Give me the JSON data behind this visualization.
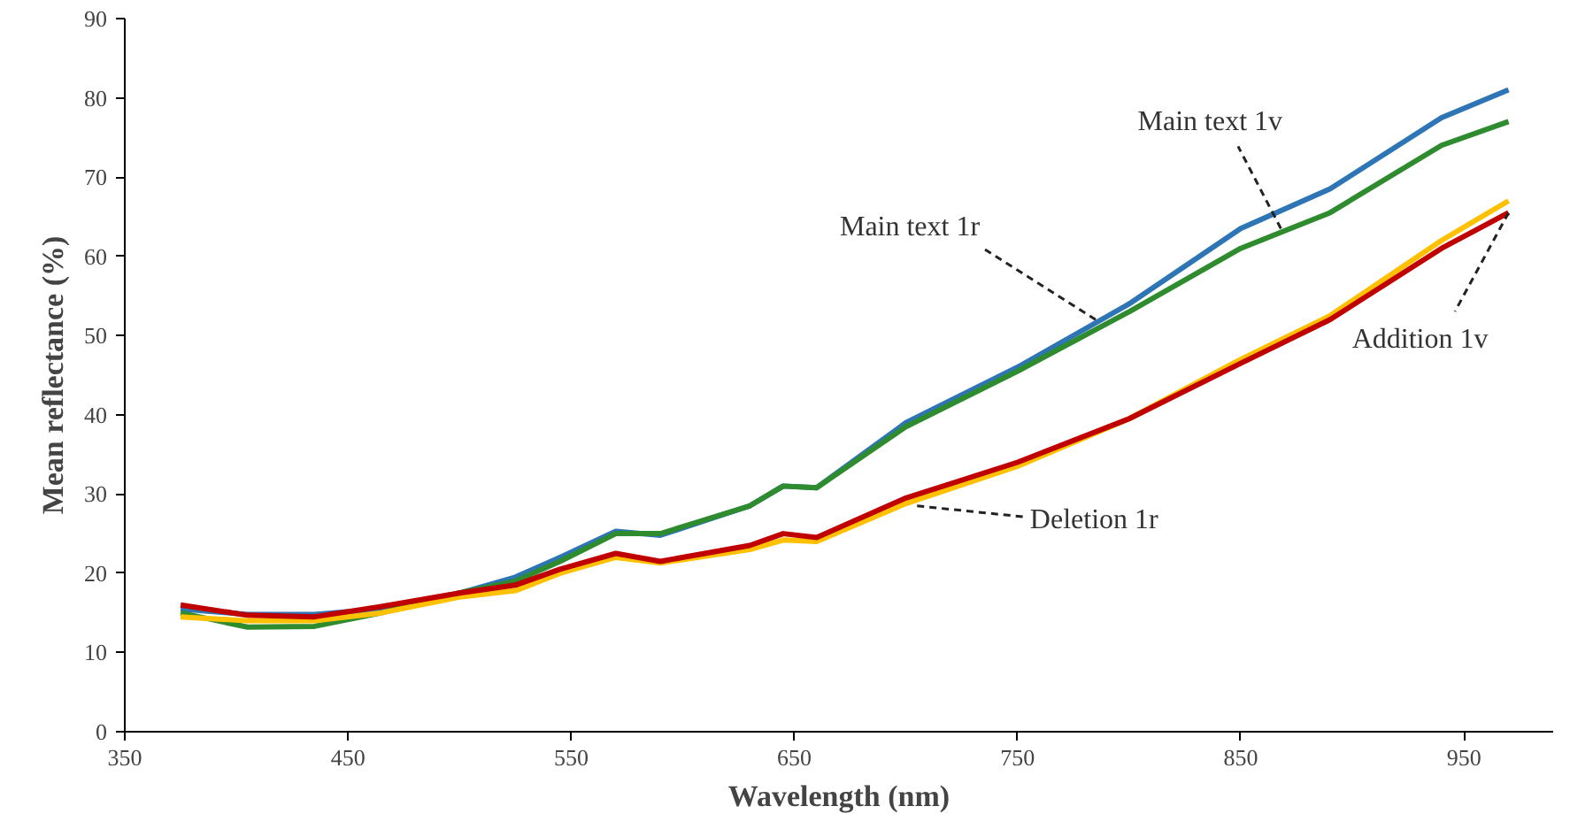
{
  "chart_data": {
    "type": "line",
    "xlabel": "Wavelength (nm)",
    "ylabel": "Mean reflectance (%)",
    "x": [
      375,
      405,
      435,
      465,
      500,
      525,
      545,
      570,
      590,
      630,
      645,
      660,
      700,
      750,
      800,
      850,
      890,
      940,
      970
    ],
    "xlim": [
      350,
      990
    ],
    "xticks": [
      350,
      450,
      550,
      650,
      750,
      850,
      950
    ],
    "ylim": [
      0,
      90
    ],
    "yticks": [
      0,
      10,
      20,
      30,
      40,
      50,
      60,
      70,
      80,
      90
    ],
    "grid": false,
    "marker": "none",
    "line_style": "solid",
    "series": [
      {
        "color": "#2e75b6",
        "values": [
          15.5,
          14.8,
          14.8,
          15.5,
          17.5,
          19.5,
          22,
          25.3,
          24.8,
          28.5,
          31,
          30.8,
          39,
          46,
          54,
          63.5,
          68.5,
          77.5,
          81
        ]
      },
      {
        "color": "#2e8b2e",
        "values": [
          15,
          13.2,
          13.3,
          15,
          17.5,
          19,
          21.5,
          25,
          25,
          28.5,
          31,
          30.8,
          38.5,
          45.5,
          53,
          61,
          65.5,
          74,
          77
        ]
      },
      {
        "color": "#ffc000",
        "values": [
          14.5,
          14,
          14,
          15,
          17,
          17.8,
          20,
          22,
          21.3,
          23,
          24.2,
          24,
          28.8,
          33.5,
          39.5,
          47,
          52.5,
          62,
          67
        ]
      },
      {
        "color": "#c00000",
        "values": [
          16,
          14.7,
          14.5,
          15.8,
          17.5,
          18.5,
          20.5,
          22.5,
          21.5,
          23.5,
          25,
          24.5,
          29.5,
          34,
          39.5,
          46.5,
          52,
          61,
          65.5
        ]
      }
    ],
    "annotations": [
      {
        "text": "Main text 1v",
        "x": 868,
        "y": 63.5
      },
      {
        "text": "Main text 1r",
        "x": 785,
        "y": 52
      },
      {
        "text": "Deletion 1r",
        "x": 705,
        "y": 28.5
      },
      {
        "text": "Addition 1v",
        "x": 970,
        "y": 65.5
      }
    ]
  }
}
